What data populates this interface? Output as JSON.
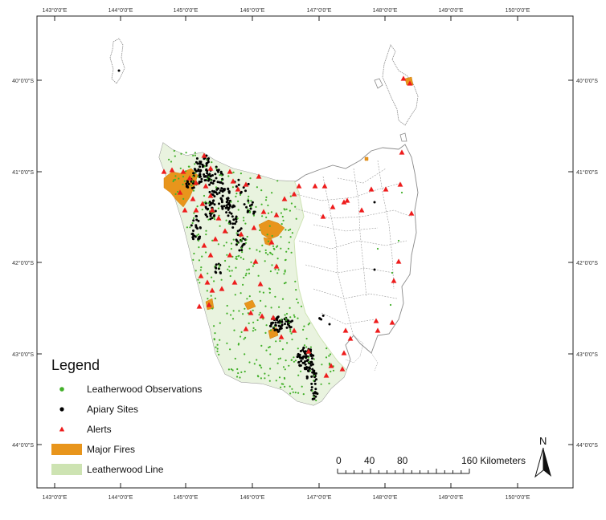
{
  "map": {
    "frame_ticks": {
      "longitudes": [
        "143°0'0\"E",
        "144°0'0\"E",
        "145°0'0\"E",
        "146°0'0\"E",
        "147°0'0\"E",
        "148°0'0\"E",
        "149°0'0\"E",
        "150°0'0\"E"
      ],
      "latitudes": [
        "40°0'0\"S",
        "41°0'0\"S",
        "42°0'0\"S",
        "43°0'0\"S",
        "44°0'0\"S"
      ]
    },
    "legend": {
      "title": "Legend",
      "items": [
        {
          "label": "Leatherwood Observations",
          "symbol": "green-dot",
          "color": "#43b02a"
        },
        {
          "label": "Apiary Sites",
          "symbol": "black-dot",
          "color": "#000000"
        },
        {
          "label": "Alerts",
          "symbol": "red-triangle",
          "color": "#ee1c1c"
        },
        {
          "label": "Major Fires",
          "symbol": "orange-fill",
          "color": "#e8951c"
        },
        {
          "label": "Leatherwood Line",
          "symbol": "light-green-fill",
          "color": "#cde3b2"
        }
      ]
    },
    "scale_bar": {
      "labels": [
        "0",
        "40",
        "80",
        "160 Kilometers"
      ]
    },
    "north_arrow": {
      "label": "N",
      "icon": "north-arrow-icon"
    },
    "colors": {
      "land_outline": "#8a8a8a",
      "road": "#9a9a9a",
      "leatherwood_zone": "#e9f3df",
      "observation": "#43b02a",
      "apiary": "#000000",
      "alert": "#ee1c1c",
      "fire": "#e8951c"
    }
  }
}
